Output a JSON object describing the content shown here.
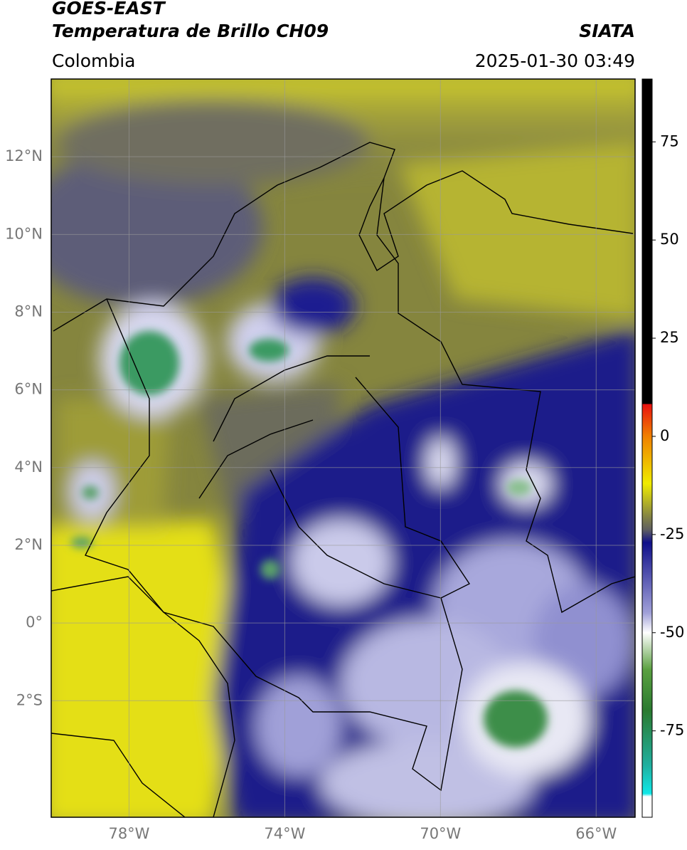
{
  "header": {
    "title": "GOES-EAST",
    "subtitle": "Temperatura de Brillo CH09",
    "region": "Colombia",
    "source": "SIATA",
    "datetime": "2025-01-30 03:49"
  },
  "map": {
    "xlim": [
      -80,
      -65
    ],
    "ylim": [
      -5,
      14
    ],
    "xticks": [
      {
        "value": -78,
        "label": "78°W"
      },
      {
        "value": -74,
        "label": "74°W"
      },
      {
        "value": -70,
        "label": "70°W"
      },
      {
        "value": -66,
        "label": "66°W"
      }
    ],
    "yticks": [
      {
        "value": -2,
        "label": "2°S"
      },
      {
        "value": 0,
        "label": "0°"
      },
      {
        "value": 2,
        "label": "2°N"
      },
      {
        "value": 4,
        "label": "4°N"
      },
      {
        "value": 6,
        "label": "6°N"
      },
      {
        "value": 8,
        "label": "8°N"
      },
      {
        "value": 10,
        "label": "10°N"
      },
      {
        "value": 12,
        "label": "12°N"
      }
    ],
    "grid": true
  },
  "colorbar": {
    "lim": [
      -97,
      91
    ],
    "ticks": [
      -75,
      -50,
      -25,
      0,
      25,
      50,
      75
    ]
  }
}
